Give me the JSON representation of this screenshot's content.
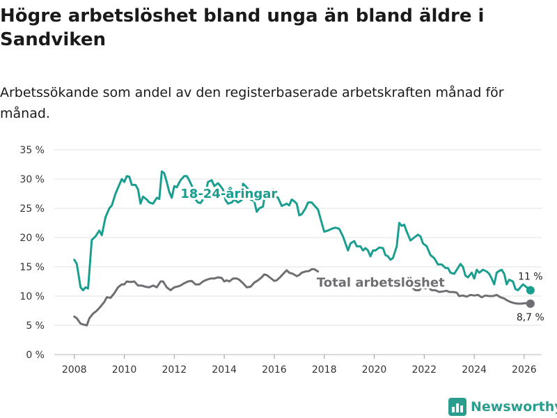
{
  "title": "Högre arbetslöshet bland unga än bland äldre i Sandviken",
  "subtitle": "Arbetssökande som andel av den registerbaserade arbetskraften månad för månad.",
  "brand": {
    "name": "Newsworthy",
    "color": "#2a9d8f"
  },
  "chart_data": {
    "type": "line",
    "title": "Högre arbetslöshet bland unga än bland äldre i Sandviken",
    "subtitle": "Arbetssökande som andel av den registerbaserade arbetskraften månad för månad.",
    "xlabel": "",
    "ylabel": "",
    "xlim": [
      2007.2,
      2026.7
    ],
    "ylim": [
      0,
      35
    ],
    "x_ticks": [
      2008,
      2010,
      2012,
      2014,
      2016,
      2018,
      2020,
      2022,
      2024,
      2026
    ],
    "y_ticks": [
      0,
      5,
      10,
      15,
      20,
      25,
      30,
      35
    ],
    "y_tick_labels": [
      "0 %",
      "5 %",
      "10 %",
      "15 %",
      "20 %",
      "25 %",
      "30 %",
      "35 %"
    ],
    "grid": true,
    "series": [
      {
        "name": "18-24-åringar",
        "label": "18-24-åringar",
        "color": "#1a9e8f",
        "end_label": "11 %",
        "points": [
          [
            2008.0,
            16.2
          ],
          [
            2008.1,
            15.5
          ],
          [
            2008.25,
            11.5
          ],
          [
            2008.35,
            11.0
          ],
          [
            2008.45,
            11.5
          ],
          [
            2008.55,
            11.3
          ],
          [
            2008.7,
            19.6
          ],
          [
            2008.85,
            20.2
          ],
          [
            2009.0,
            21.2
          ],
          [
            2009.1,
            20.4
          ],
          [
            2009.25,
            23.5
          ],
          [
            2009.4,
            25.0
          ],
          [
            2009.5,
            25.5
          ],
          [
            2009.65,
            27.5
          ],
          [
            2009.8,
            29.0
          ],
          [
            2009.9,
            30.0
          ],
          [
            2010.0,
            29.5
          ],
          [
            2010.1,
            30.5
          ],
          [
            2010.2,
            30.4
          ],
          [
            2010.3,
            29.0
          ],
          [
            2010.45,
            29.0
          ],
          [
            2010.55,
            28.2
          ],
          [
            2010.65,
            25.8
          ],
          [
            2010.75,
            27.0
          ],
          [
            2010.9,
            26.5
          ],
          [
            2011.0,
            26.0
          ],
          [
            2011.15,
            25.8
          ],
          [
            2011.3,
            26.8
          ],
          [
            2011.4,
            26.6
          ],
          [
            2011.5,
            31.3
          ],
          [
            2011.6,
            31.0
          ],
          [
            2011.7,
            29.5
          ],
          [
            2011.8,
            27.8
          ],
          [
            2011.9,
            26.8
          ],
          [
            2012.0,
            28.8
          ],
          [
            2012.1,
            28.6
          ],
          [
            2012.25,
            29.8
          ],
          [
            2012.4,
            30.5
          ],
          [
            2012.5,
            30.5
          ],
          [
            2012.6,
            29.8
          ],
          [
            2012.75,
            28.4
          ],
          [
            2012.85,
            26.5
          ],
          [
            2012.95,
            26.0
          ],
          [
            2013.05,
            25.9
          ],
          [
            2013.2,
            26.8
          ],
          [
            2013.35,
            29.5
          ],
          [
            2013.5,
            29.8
          ],
          [
            2013.6,
            28.8
          ],
          [
            2013.75,
            29.3
          ],
          [
            2013.85,
            28.8
          ],
          [
            2013.95,
            28.2
          ],
          [
            2014.05,
            26.4
          ],
          [
            2014.15,
            25.8
          ],
          [
            2014.3,
            26.0
          ],
          [
            2014.4,
            26.5
          ],
          [
            2014.55,
            26.0
          ],
          [
            2014.7,
            26.4
          ],
          [
            2014.75,
            29.2
          ],
          [
            2014.85,
            28.8
          ],
          [
            2014.95,
            28.3
          ],
          [
            2015.05,
            26.5
          ],
          [
            2015.2,
            26.2
          ],
          [
            2015.3,
            24.4
          ],
          [
            2015.4,
            25.0
          ],
          [
            2015.55,
            25.3
          ],
          [
            2015.65,
            27.8
          ],
          [
            2015.75,
            27.2
          ],
          [
            2015.85,
            26.9
          ],
          [
            2015.95,
            28.2
          ],
          [
            2016.05,
            27.0
          ],
          [
            2016.15,
            26.8
          ],
          [
            2016.3,
            25.4
          ],
          [
            2016.4,
            25.6
          ],
          [
            2016.5,
            25.8
          ],
          [
            2016.6,
            25.5
          ],
          [
            2016.7,
            26.5
          ],
          [
            2016.8,
            26.2
          ],
          [
            2016.9,
            25.8
          ],
          [
            2017.0,
            23.8
          ],
          [
            2017.1,
            24.0
          ],
          [
            2017.25,
            25.0
          ],
          [
            2017.35,
            26.0
          ],
          [
            2017.5,
            26.0
          ],
          [
            2017.6,
            25.5
          ],
          [
            2017.75,
            24.8
          ],
          [
            2017.9,
            22.5
          ],
          [
            2018.0,
            21.0
          ],
          [
            2018.15,
            21.2
          ],
          [
            2018.3,
            21.5
          ],
          [
            2018.45,
            21.7
          ],
          [
            2018.6,
            21.5
          ],
          [
            2018.75,
            20.2
          ],
          [
            2018.85,
            19.0
          ],
          [
            2018.95,
            17.8
          ],
          [
            2019.05,
            19.0
          ],
          [
            2019.2,
            19.4
          ],
          [
            2019.3,
            18.5
          ],
          [
            2019.45,
            18.5
          ],
          [
            2019.55,
            17.8
          ],
          [
            2019.65,
            18.2
          ],
          [
            2019.75,
            17.8
          ],
          [
            2019.85,
            16.8
          ],
          [
            2019.95,
            17.8
          ],
          [
            2020.05,
            17.8
          ],
          [
            2020.2,
            18.3
          ],
          [
            2020.35,
            18.2
          ],
          [
            2020.45,
            17.0
          ],
          [
            2020.55,
            16.8
          ],
          [
            2020.65,
            16.2
          ],
          [
            2020.75,
            16.5
          ],
          [
            2020.9,
            18.5
          ],
          [
            2021.0,
            22.5
          ],
          [
            2021.1,
            22.0
          ],
          [
            2021.2,
            22.2
          ],
          [
            2021.3,
            21.0
          ],
          [
            2021.45,
            19.5
          ],
          [
            2021.6,
            20.0
          ],
          [
            2021.75,
            20.5
          ],
          [
            2021.85,
            20.2
          ],
          [
            2021.95,
            19.0
          ],
          [
            2022.1,
            18.5
          ],
          [
            2022.25,
            17.0
          ],
          [
            2022.4,
            16.5
          ],
          [
            2022.55,
            15.4
          ],
          [
            2022.7,
            15.4
          ],
          [
            2022.85,
            14.8
          ],
          [
            2022.95,
            14.8
          ],
          [
            2023.05,
            14.0
          ],
          [
            2023.2,
            13.8
          ],
          [
            2023.35,
            14.8
          ],
          [
            2023.45,
            15.5
          ],
          [
            2023.55,
            15.0
          ],
          [
            2023.65,
            13.5
          ],
          [
            2023.75,
            13.2
          ],
          [
            2023.9,
            14.0
          ],
          [
            2024.0,
            13.0
          ],
          [
            2024.1,
            14.5
          ],
          [
            2024.2,
            14.0
          ],
          [
            2024.35,
            14.5
          ],
          [
            2024.5,
            14.2
          ],
          [
            2024.6,
            13.8
          ],
          [
            2024.7,
            13.0
          ],
          [
            2024.8,
            12.0
          ],
          [
            2024.9,
            14.0
          ],
          [
            2025.0,
            14.3
          ],
          [
            2025.1,
            14.5
          ],
          [
            2025.2,
            13.8
          ],
          [
            2025.3,
            12.0
          ],
          [
            2025.4,
            12.8
          ],
          [
            2025.55,
            12.5
          ],
          [
            2025.65,
            11.2
          ],
          [
            2025.75,
            11.0
          ],
          [
            2025.85,
            11.5
          ],
          [
            2025.95,
            12.0
          ],
          [
            2026.1,
            11.5
          ],
          [
            2026.2,
            11.3
          ],
          [
            2026.25,
            11.0
          ]
        ]
      },
      {
        "name": "Total arbetslöshet",
        "label": "Total arbetslöshet",
        "color": "#6e6e73",
        "end_label": "8,7 %",
        "points": [
          [
            2008.0,
            6.5
          ],
          [
            2008.1,
            6.2
          ],
          [
            2008.25,
            5.3
          ],
          [
            2008.4,
            5.1
          ],
          [
            2008.5,
            5.0
          ],
          [
            2008.6,
            6.2
          ],
          [
            2008.75,
            7.0
          ],
          [
            2008.9,
            7.5
          ],
          [
            2009.05,
            8.2
          ],
          [
            2009.2,
            9.0
          ],
          [
            2009.3,
            9.8
          ],
          [
            2009.45,
            9.7
          ],
          [
            2009.6,
            10.5
          ],
          [
            2009.75,
            11.5
          ],
          [
            2009.9,
            12.0
          ],
          [
            2010.0,
            12.0
          ],
          [
            2010.1,
            12.5
          ],
          [
            2010.25,
            12.4
          ],
          [
            2010.4,
            12.5
          ],
          [
            2010.55,
            11.8
          ],
          [
            2010.7,
            11.8
          ],
          [
            2010.85,
            11.6
          ],
          [
            2011.0,
            11.5
          ],
          [
            2011.15,
            11.8
          ],
          [
            2011.3,
            11.5
          ],
          [
            2011.45,
            12.5
          ],
          [
            2011.55,
            12.5
          ],
          [
            2011.7,
            11.5
          ],
          [
            2011.85,
            11.0
          ],
          [
            2012.0,
            11.5
          ],
          [
            2012.1,
            11.6
          ],
          [
            2012.25,
            11.8
          ],
          [
            2012.4,
            12.2
          ],
          [
            2012.55,
            12.5
          ],
          [
            2012.7,
            12.6
          ],
          [
            2012.85,
            12.0
          ],
          [
            2013.0,
            12.0
          ],
          [
            2013.15,
            12.5
          ],
          [
            2013.3,
            12.8
          ],
          [
            2013.45,
            13.0
          ],
          [
            2013.6,
            13.0
          ],
          [
            2013.75,
            13.2
          ],
          [
            2013.9,
            13.1
          ],
          [
            2014.0,
            12.5
          ],
          [
            2014.1,
            12.7
          ],
          [
            2014.2,
            12.5
          ],
          [
            2014.35,
            13.0
          ],
          [
            2014.5,
            13.0
          ],
          [
            2014.6,
            12.8
          ],
          [
            2014.75,
            12.2
          ],
          [
            2014.9,
            11.5
          ],
          [
            2015.05,
            11.6
          ],
          [
            2015.2,
            12.3
          ],
          [
            2015.35,
            12.7
          ],
          [
            2015.5,
            13.2
          ],
          [
            2015.6,
            13.7
          ],
          [
            2015.7,
            13.6
          ],
          [
            2015.85,
            13.1
          ],
          [
            2016.0,
            12.6
          ],
          [
            2016.1,
            12.7
          ],
          [
            2016.25,
            13.3
          ],
          [
            2016.4,
            14.0
          ],
          [
            2016.5,
            14.4
          ],
          [
            2016.6,
            14.0
          ],
          [
            2016.75,
            13.8
          ],
          [
            2016.9,
            13.4
          ],
          [
            2017.0,
            13.6
          ],
          [
            2017.1,
            14.0
          ],
          [
            2017.25,
            14.2
          ],
          [
            2017.4,
            14.3
          ],
          [
            2017.5,
            14.6
          ],
          [
            2017.6,
            14.6
          ],
          [
            2017.75,
            14.2
          ],
          [
            2021.35,
            12.0
          ],
          [
            2021.5,
            11.5
          ],
          [
            2021.65,
            11.0
          ],
          [
            2021.8,
            11.0
          ],
          [
            2021.9,
            11.5
          ],
          [
            2022.05,
            11.3
          ],
          [
            2022.15,
            11.5
          ],
          [
            2022.3,
            11.0
          ],
          [
            2022.45,
            11.0
          ],
          [
            2022.6,
            10.7
          ],
          [
            2022.75,
            10.8
          ],
          [
            2022.9,
            10.9
          ],
          [
            2023.0,
            10.7
          ],
          [
            2023.15,
            10.7
          ],
          [
            2023.3,
            10.6
          ],
          [
            2023.4,
            10.0
          ],
          [
            2023.55,
            10.1
          ],
          [
            2023.7,
            9.9
          ],
          [
            2023.85,
            10.2
          ],
          [
            2024.0,
            10.1
          ],
          [
            2024.15,
            10.2
          ],
          [
            2024.3,
            9.8
          ],
          [
            2024.45,
            10.1
          ],
          [
            2024.6,
            10.0
          ],
          [
            2024.75,
            10.0
          ],
          [
            2024.9,
            10.2
          ],
          [
            2025.05,
            9.8
          ],
          [
            2025.2,
            9.6
          ],
          [
            2025.3,
            9.3
          ],
          [
            2025.45,
            9.0
          ],
          [
            2025.6,
            8.8
          ],
          [
            2025.75,
            8.7
          ],
          [
            2025.9,
            8.7
          ],
          [
            2026.05,
            8.8
          ],
          [
            2026.15,
            8.7
          ],
          [
            2026.25,
            8.7
          ]
        ]
      }
    ]
  }
}
